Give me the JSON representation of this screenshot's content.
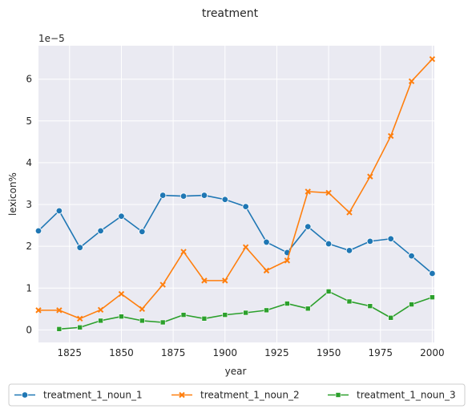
{
  "chart_data": {
    "type": "line",
    "title": "treatment",
    "xlabel": "year",
    "ylabel": "lexicon%",
    "y_multiplier_label": "1e−5",
    "xlim": [
      1810,
      2001
    ],
    "ylim": [
      -0.3,
      6.8
    ],
    "x_ticks": [
      1825,
      1850,
      1875,
      1900,
      1925,
      1950,
      1975,
      2000
    ],
    "y_ticks": [
      0,
      1,
      2,
      3,
      4,
      5,
      6
    ],
    "grid": true,
    "legend_position": "bottom",
    "series": [
      {
        "name": "treatment_1_noun_1",
        "color": "#1f77b4",
        "marker": "circle",
        "x": [
          1810,
          1820,
          1830,
          1840,
          1850,
          1860,
          1870,
          1880,
          1890,
          1900,
          1910,
          1920,
          1930,
          1940,
          1950,
          1960,
          1970,
          1980,
          1990,
          2000
        ],
        "y": [
          2.37,
          2.85,
          1.97,
          2.37,
          2.72,
          2.35,
          3.22,
          3.2,
          3.22,
          3.12,
          2.95,
          2.1,
          1.85,
          2.47,
          2.06,
          1.9,
          2.12,
          2.18,
          1.77,
          1.35
        ]
      },
      {
        "name": "treatment_1_noun_2",
        "color": "#ff7f0e",
        "marker": "x",
        "x": [
          1810,
          1820,
          1830,
          1840,
          1850,
          1860,
          1870,
          1880,
          1890,
          1900,
          1910,
          1920,
          1930,
          1940,
          1950,
          1960,
          1970,
          1980,
          1990,
          2000
        ],
        "y": [
          0.47,
          0.47,
          0.27,
          0.48,
          0.86,
          0.5,
          1.08,
          1.87,
          1.18,
          1.18,
          1.98,
          1.42,
          1.66,
          3.31,
          3.28,
          2.81,
          3.67,
          4.64,
          5.95,
          6.48
        ]
      },
      {
        "name": "treatment_1_noun_3",
        "color": "#2ca02c",
        "marker": "square",
        "x": [
          1820,
          1830,
          1840,
          1850,
          1860,
          1870,
          1880,
          1890,
          1900,
          1910,
          1920,
          1930,
          1940,
          1950,
          1960,
          1970,
          1980,
          1990,
          2000
        ],
        "y": [
          0.02,
          0.06,
          0.22,
          0.32,
          0.22,
          0.18,
          0.36,
          0.27,
          0.36,
          0.41,
          0.47,
          0.63,
          0.51,
          0.92,
          0.68,
          0.57,
          0.29,
          0.61,
          0.78
        ]
      }
    ]
  }
}
